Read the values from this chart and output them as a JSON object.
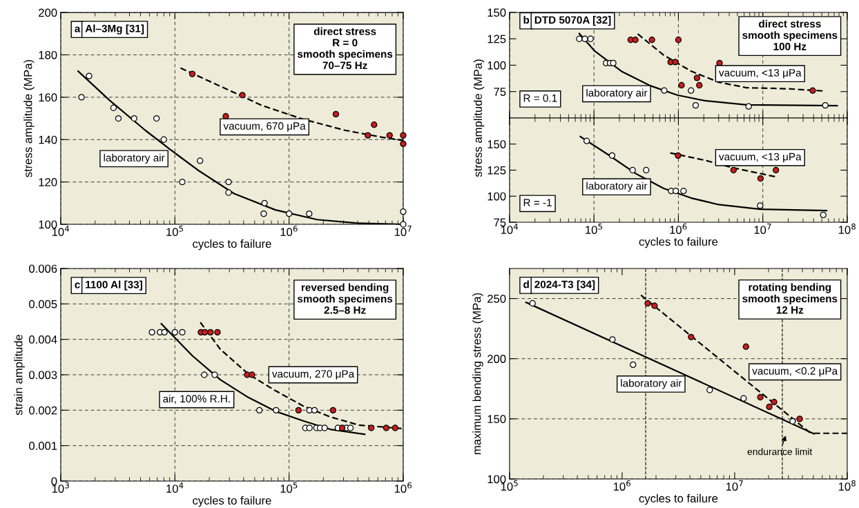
{
  "chart_data": [
    {
      "type": "scatter",
      "title": "a",
      "subtitle": "Al–3Mg [31]",
      "xlabel": "cycles to failure",
      "ylabel": "stress amplitude (MPa)",
      "log": "x",
      "grid": true,
      "marker": "circle",
      "xlim": [
        10000,
        10000000
      ],
      "xticks": [
        {
          "value": 10000,
          "label": "10$^{4}$"
        },
        {
          "value": 100000,
          "label": "10$^{5}$"
        },
        {
          "value": 1000000,
          "label": "10$^{6}$"
        },
        {
          "value": 10000000,
          "label": "10$^{7}$"
        }
      ],
      "ylim": [
        100,
        200
      ],
      "yticks": [
        100,
        120,
        140,
        160,
        180,
        200
      ],
      "annotations": [
        "direct stress\nR = 0\nsmooth specimens\n70–75 Hz",
        "laboratory air",
        "vacuum, 670 μPa"
      ],
      "series": [
        {
          "type": "scatter",
          "color": "#ffffff",
          "x": [
            15200,
            17700,
            29000,
            32000,
            44000,
            69000,
            80000,
            116000,
            166000,
            295000,
            295000,
            610000,
            600000,
            1000000,
            1500000,
            10000000,
            10000000
          ],
          "values": [
            160,
            170,
            155,
            150,
            150,
            150,
            140,
            120,
            130,
            120,
            115,
            110,
            105,
            105,
            105,
            106,
            100
          ]
        },
        {
          "type": "scatter",
          "color": "#c81e1e",
          "x": [
            142000,
            390000,
            279000,
            2570000,
            5560000,
            4900000,
            7600000,
            10000000,
            10000000
          ],
          "values": [
            171,
            161,
            151,
            152,
            147,
            142,
            142,
            142,
            138
          ]
        },
        {
          "type": "line",
          "color": "#000000",
          "marker": "none",
          "line_style": "solid",
          "x": [
            14200,
            26600,
            55000,
            91000,
            159000,
            330000,
            760000,
            1770000,
            4100000,
            10000000
          ],
          "values": [
            172.3,
            158.7,
            144.4,
            135.3,
            125.6,
            114.5,
            106.8,
            102.2,
            100.5,
            100
          ]
        },
        {
          "type": "line",
          "color": "#000000",
          "marker": "none",
          "line_style": "dashed",
          "x": [
            112000,
            250000,
            580000,
            1330000,
            3090000,
            6400000,
            10000000
          ],
          "values": [
            173.8,
            165.2,
            156.1,
            149.6,
            144.4,
            141.2,
            139.6
          ]
        }
      ]
    },
    {
      "type": "scatter",
      "title": "b",
      "subtitle": "DTD 5070A [32]",
      "ylabel": "stress amplitude (MPa)",
      "log": "x",
      "grid": "x",
      "marker": "circle",
      "tick_labels": "y",
      "xlim": [
        10000,
        100000000
      ],
      "xticks": [
        {
          "value": 10000,
          "label": null
        },
        {
          "value": 100000,
          "label": null
        },
        {
          "value": 1000000,
          "label": null
        },
        {
          "value": 10000000,
          "label": null
        },
        {
          "value": 100000000,
          "label": null
        }
      ],
      "ylim": [
        50,
        150
      ],
      "yticks": [
        75,
        100,
        125,
        150
      ],
      "annotations": [
        "direct stress\nsmooth specimens\n100 Hz",
        "R = 0.1",
        "laboratory air",
        "vacuum, <13 μPa"
      ],
      "series": [
        {
          "type": "scatter",
          "color": "#ffffff",
          "x": [
            67000,
            78000,
            91000,
            139000,
            155000,
            169000,
            680000,
            1410000,
            1600000,
            6800000,
            55000000
          ],
          "values": [
            125,
            125,
            125,
            102,
            102,
            102,
            76,
            76,
            62,
            61,
            62
          ]
        },
        {
          "type": "scatter",
          "color": "#c81e1e",
          "x": [
            272000,
            309000,
            486000,
            810000,
            920000,
            1000000,
            1090000,
            1660000,
            1770000,
            3070000,
            39000000
          ],
          "values": [
            124,
            124,
            124,
            103,
            103,
            124,
            81,
            88,
            81,
            102,
            76
          ]
        },
        {
          "type": "line",
          "color": "#000000",
          "marker": "none",
          "line_style": "solid",
          "x": [
            67000,
            102000,
            215000,
            457000,
            970000,
            2060000,
            6400000,
            76000000
          ],
          "values": [
            130,
            113.4,
            93.9,
            80.8,
            71.7,
            66.4,
            62.5,
            61.7
          ]
        },
        {
          "type": "line",
          "color": "#000000",
          "marker": "none",
          "line_style": "dashed",
          "x": [
            330000,
            670000,
            1410000,
            3000000,
            6400000,
            19700000,
            52000000
          ],
          "values": [
            129.6,
            109.5,
            94.4,
            83.9,
            78.7,
            77.7,
            75.6
          ]
        }
      ]
    },
    {
      "type": "scatter",
      "xlabel": "cycles to failure",
      "log": "x",
      "grid": "x",
      "marker": "circle",
      "xlim": [
        10000,
        100000000
      ],
      "xticks": [
        {
          "value": 10000,
          "label": "10$^{4}$"
        },
        {
          "value": 100000,
          "label": "10$^{5}$"
        },
        {
          "value": 1000000,
          "label": "10$^{6}$"
        },
        {
          "value": 10000000,
          "label": "10$^{7}$"
        },
        {
          "value": 100000000,
          "label": "10$^{8}$"
        }
      ],
      "ylim": [
        75,
        175
      ],
      "yticks": [
        75,
        100,
        125,
        150
      ],
      "annotations": [
        "R = -1",
        "laboratory air",
        "vacuum, <13 μPa"
      ],
      "series": [
        {
          "type": "scatter",
          "color": "#ffffff",
          "x": [
            82000,
            164000,
            287000,
            415000,
            820000,
            930000,
            1150000,
            9300000,
            52000000
          ],
          "values": [
            153,
            139,
            125,
            125,
            105,
            105,
            105,
            91,
            82
          ]
        },
        {
          "type": "scatter",
          "color": "#c81e1e",
          "x": [
            990000,
            4500000,
            9400000,
            14300000
          ],
          "values": [
            139,
            125,
            117,
            125
          ]
        },
        {
          "type": "line",
          "color": "#000000",
          "marker": "none",
          "line_style": "solid",
          "x": [
            69000,
            148000,
            314000,
            670000,
            1410000,
            3000000,
            9300000,
            57000000
          ],
          "values": [
            157.2,
            139.7,
            121.6,
            107.4,
            98.3,
            91.9,
            87.5,
            86.2
          ]
        },
        {
          "type": "line",
          "color": "#000000",
          "marker": "none",
          "line_style": "dashed",
          "x": [
            800000,
            2060000,
            4400000,
            14400000
          ],
          "values": [
            141.5,
            134.5,
            127.3,
            118.5
          ]
        }
      ]
    },
    {
      "type": "scatter",
      "title": "c",
      "subtitle": "1100 Al [33]",
      "xlabel": "cycles to failure",
      "ylabel": "strain amplitude",
      "log": "x",
      "grid": true,
      "marker": "circle",
      "xlim": [
        1000,
        1000000
      ],
      "xticks": [
        {
          "value": 1000,
          "label": "10$^{3}$"
        },
        {
          "value": 10000,
          "label": "10$^{4}$"
        },
        {
          "value": 100000,
          "label": "10$^{5}$"
        },
        {
          "value": 1000000,
          "label": "10$^{6}$"
        }
      ],
      "ylim": [
        0,
        0.006
      ],
      "yticks": [
        0,
        0.001,
        0.002,
        0.003,
        0.004,
        0.005,
        0.006
      ],
      "annotations": [
        "reversed bending\nsmooth specimens\n2.5–8 Hz",
        "air, 100% R.H.",
        "vacuum, 270 μPa"
      ],
      "series": [
        {
          "type": "scatter",
          "color": "#ffffff",
          "x": [
            6300,
            7400,
            8100,
            10000,
            11600,
            18100,
            22300,
            55000,
            77000,
            139000,
            151000,
            174000,
            187000,
            205000,
            151000,
            167000,
            268000,
            318000,
            345000
          ],
          "values": [
            0.0042,
            0.0042,
            0.0042,
            0.0042,
            0.0042,
            0.003,
            0.003,
            0.002,
            0.002,
            0.0015,
            0.0015,
            0.0015,
            0.0015,
            0.0015,
            0.002,
            0.002,
            0.0015,
            0.0015,
            0.0015
          ]
        },
        {
          "type": "scatter",
          "color": "#c81e1e",
          "x": [
            16900,
            18300,
            20500,
            23600,
            43000,
            47400,
            121000,
            243000,
            292000,
            525000,
            710000,
            850000
          ],
          "values": [
            0.0042,
            0.0042,
            0.0042,
            0.0042,
            0.003,
            0.003,
            0.002,
            0.002,
            0.0015,
            0.0015,
            0.0015,
            0.0015
          ]
        },
        {
          "type": "line",
          "color": "#000000",
          "marker": "none",
          "line_style": "solid",
          "x": [
            7600,
            14300,
            25000,
            44000,
            76000,
            133000,
            230000,
            460000
          ],
          "values": [
            0.00444,
            0.00353,
            0.00286,
            0.00236,
            0.00197,
            0.0017,
            0.00146,
            0.00132
          ]
        },
        {
          "type": "line",
          "color": "#000000",
          "marker": "none",
          "line_style": "dashed",
          "x": [
            16700,
            25000,
            44000,
            76000,
            133000,
            230000,
            410000,
            1000000
          ],
          "values": [
            0.00448,
            0.00372,
            0.00302,
            0.00255,
            0.00212,
            0.00181,
            0.00158,
            0.00148
          ]
        }
      ]
    },
    {
      "type": "scatter",
      "title": "d",
      "subtitle": "2024-T3 [34]",
      "xlabel": "cycles to failure",
      "ylabel": "maximum bending stress (MPa)",
      "log": "x",
      "grid": "y",
      "marker": "circle",
      "xlim": [
        100000,
        100000000
      ],
      "xticks": [
        {
          "value": 100000,
          "label": "10$^{5}$"
        },
        {
          "value": 1000000,
          "label": "10$^{6}$"
        },
        {
          "value": 10000000,
          "label": "10$^{7}$"
        },
        {
          "value": 100000000,
          "label": "10$^{8}$"
        }
      ],
      "ylim": [
        100,
        275
      ],
      "yticks": [
        100,
        150,
        200,
        250
      ],
      "ref_lines": [
        {
          "axis": "x",
          "value": 1620000,
          "line_style": "dashed",
          "color": "#000000"
        },
        {
          "axis": "x",
          "value": 26500000,
          "line_style": "dashed",
          "color": "#000000"
        }
      ],
      "annotations": [
        "rotating bending\nsmooth specimens\n12 Hz",
        "laboratory air",
        "vacuum, <0.2 μPa",
        "endurance limit"
      ],
      "series": [
        {
          "type": "scatter",
          "color": "#ffffff",
          "x": [
            160000,
            820000,
            1250000,
            6000000,
            12000000,
            32700000
          ],
          "values": [
            246,
            216,
            195,
            174,
            167,
            148
          ]
        },
        {
          "type": "scatter",
          "color": "#c81e1e",
          "x": [
            1690000,
            1940000,
            4100000,
            12600000,
            16900000,
            20300000,
            22400000,
            37800000
          ],
          "values": [
            246,
            244,
            218,
            210,
            168,
            160,
            164,
            150
          ]
        },
        {
          "type": "line",
          "color": "#000000",
          "marker": "none",
          "line_style": "solid",
          "x": [
            140000,
            50700000
          ],
          "values": [
            246.8,
            137.6
          ]
        },
        {
          "type": "line",
          "color": "#000000",
          "marker": "none",
          "line_style": "dashed",
          "x": [
            1470000,
            46700000
          ],
          "values": [
            252.8,
            138.5
          ]
        },
        {
          "type": "line",
          "color": "#000000",
          "marker": "none",
          "line_style": "dashed",
          "x": [
            50700000,
            100000000
          ],
          "values": [
            138,
            138
          ]
        }
      ]
    }
  ]
}
